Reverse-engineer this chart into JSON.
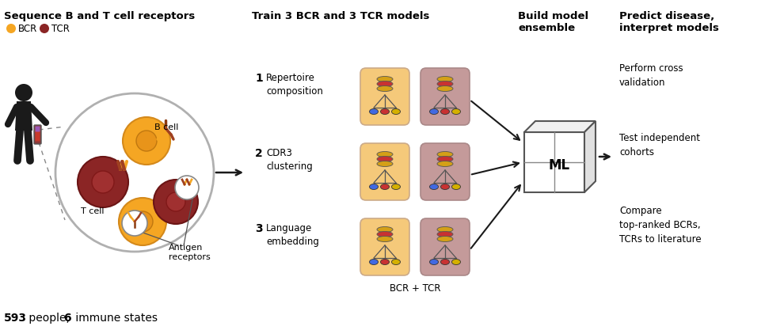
{
  "title_section1": "Sequence B and T cell receptors",
  "legend_bcr": "BCR",
  "legend_tcr": "TCR",
  "bcr_color": "#F5A623",
  "tcr_color": "#8B2525",
  "bottom_text_593": "593",
  "bottom_text_people": " people, ",
  "bottom_text_6": "6",
  "bottom_text_states": " immune states",
  "title_section2": "Train 3 BCR and 3 TCR models",
  "title_section3": "Build model\nensemble",
  "title_section4": "Predict disease,\ninterpret models",
  "row1_num": "1",
  "row1_label": "Repertoire\ncomposition",
  "row2_num": "2",
  "row2_label": "CDR3\nclustering",
  "row3_num": "3",
  "row3_label": "Language\nembedding",
  "bcr_tcr_label": "BCR + TCR",
  "ml_label": "ML",
  "right_text1": "Perform cross\nvalidation",
  "right_text2": "Test independent\ncohorts",
  "right_text3": "Compare\ntop-ranked BCRs,\nTCRs to literature",
  "bcr_box_color": "#F5C97A",
  "tcr_box_color": "#C49A9A",
  "background": "#FFFFFF",
  "human_color": "#1A1A1A",
  "cell_orange_outer": "#F5A623",
  "cell_orange_inner": "#E8941A",
  "cell_dark_outer": "#8B2525",
  "cell_dark_inner": "#A03030"
}
